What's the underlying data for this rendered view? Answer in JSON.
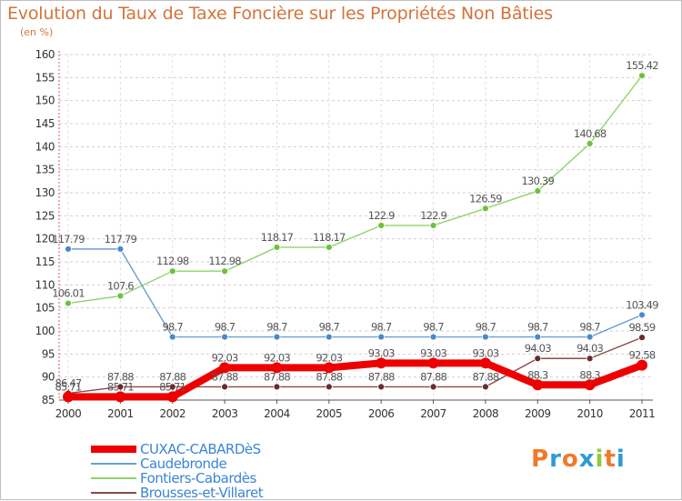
{
  "title": "Evolution du Taux de Taxe Foncière sur les Propriétés Non Bâties",
  "subtitle": "(en %)",
  "logo": {
    "text": "Proxiti",
    "letters": [
      "P",
      "r",
      "o",
      "x",
      "i",
      "t",
      "i"
    ],
    "colors": [
      "#f07a2a",
      "#2e9ad8",
      "#f07a2a",
      "#2e9ad8",
      "#92c83e",
      "#f07a2a",
      "#2e9ad8"
    ]
  },
  "chart_data": {
    "type": "line",
    "categories": [
      "2000",
      "2001",
      "2002",
      "2003",
      "2004",
      "2005",
      "2006",
      "2007",
      "2008",
      "2009",
      "2010",
      "2011"
    ],
    "ylim": [
      85,
      160
    ],
    "yticks": [
      85,
      90,
      95,
      100,
      105,
      110,
      115,
      120,
      125,
      130,
      135,
      140,
      145,
      150,
      155,
      160
    ],
    "grid": "horizontal",
    "series": [
      {
        "name": "Fontiers-Cabardès",
        "color": "#8fd46a",
        "marker": "#6cc23a",
        "width": 1.4,
        "r": 3.5,
        "values": [
          106.01,
          107.6,
          112.98,
          112.98,
          118.17,
          118.17,
          122.9,
          122.9,
          126.59,
          130.39,
          140.68,
          155.42
        ],
        "labels": [
          "106.01",
          "107.6",
          "112.98",
          "112.98",
          "118.17",
          "118.17",
          "122.9",
          "122.9",
          "126.59",
          "130.39",
          "140.68",
          "155.42"
        ]
      },
      {
        "name": "Caudebronde",
        "color": "#6a9fd0",
        "marker": "#4a88c8",
        "width": 1.4,
        "r": 3.5,
        "values": [
          117.79,
          117.79,
          98.7,
          98.7,
          98.7,
          98.7,
          98.7,
          98.7,
          98.7,
          98.7,
          98.7,
          103.49
        ],
        "labels": [
          "117.79",
          "117.79",
          "98.7",
          "98.7",
          "98.7",
          "98.7",
          "98.7",
          "98.7",
          "98.7",
          "98.7",
          "98.7",
          "103.49"
        ]
      },
      {
        "name": "Brousses-et-Villaret",
        "color": "#8a4a4a",
        "marker": "#6a2a2a",
        "width": 1.4,
        "r": 3.5,
        "values": [
          86.47,
          87.88,
          87.88,
          87.88,
          87.88,
          87.88,
          87.88,
          87.88,
          87.88,
          94.03,
          94.03,
          98.59
        ],
        "labels": [
          "86.47",
          "87.88",
          "87.88",
          "87.88",
          "87.88",
          "87.88",
          "87.88",
          "87.88",
          "87.88",
          "94.03",
          "94.03",
          "98.59"
        ]
      },
      {
        "name": "CUXAC-CABARDèS",
        "color": "#ee0000",
        "marker": "#ee0000",
        "width": 8,
        "r": 6,
        "values": [
          85.71,
          85.71,
          85.71,
          92.03,
          92.03,
          92.03,
          93.03,
          93.03,
          93.03,
          88.3,
          88.3,
          92.58
        ],
        "labels": [
          "85.71",
          "85.71",
          "85.71",
          "92.03",
          "92.03",
          "92.03",
          "93.03",
          "93.03",
          "93.03",
          "88.3",
          "88.3",
          "92.58"
        ]
      }
    ],
    "legend": [
      {
        "label": "CUXAC-CABARDèS",
        "color": "#ee0000",
        "width": 8
      },
      {
        "label": "Caudebronde",
        "color": "#6a9fd0",
        "width": 2
      },
      {
        "label": "Fontiers-Cabardès",
        "color": "#8fd46a",
        "width": 2
      },
      {
        "label": "Brousses-et-Villaret",
        "color": "#8a4a4a",
        "width": 2
      }
    ],
    "legend_position": "bottom-left"
  }
}
